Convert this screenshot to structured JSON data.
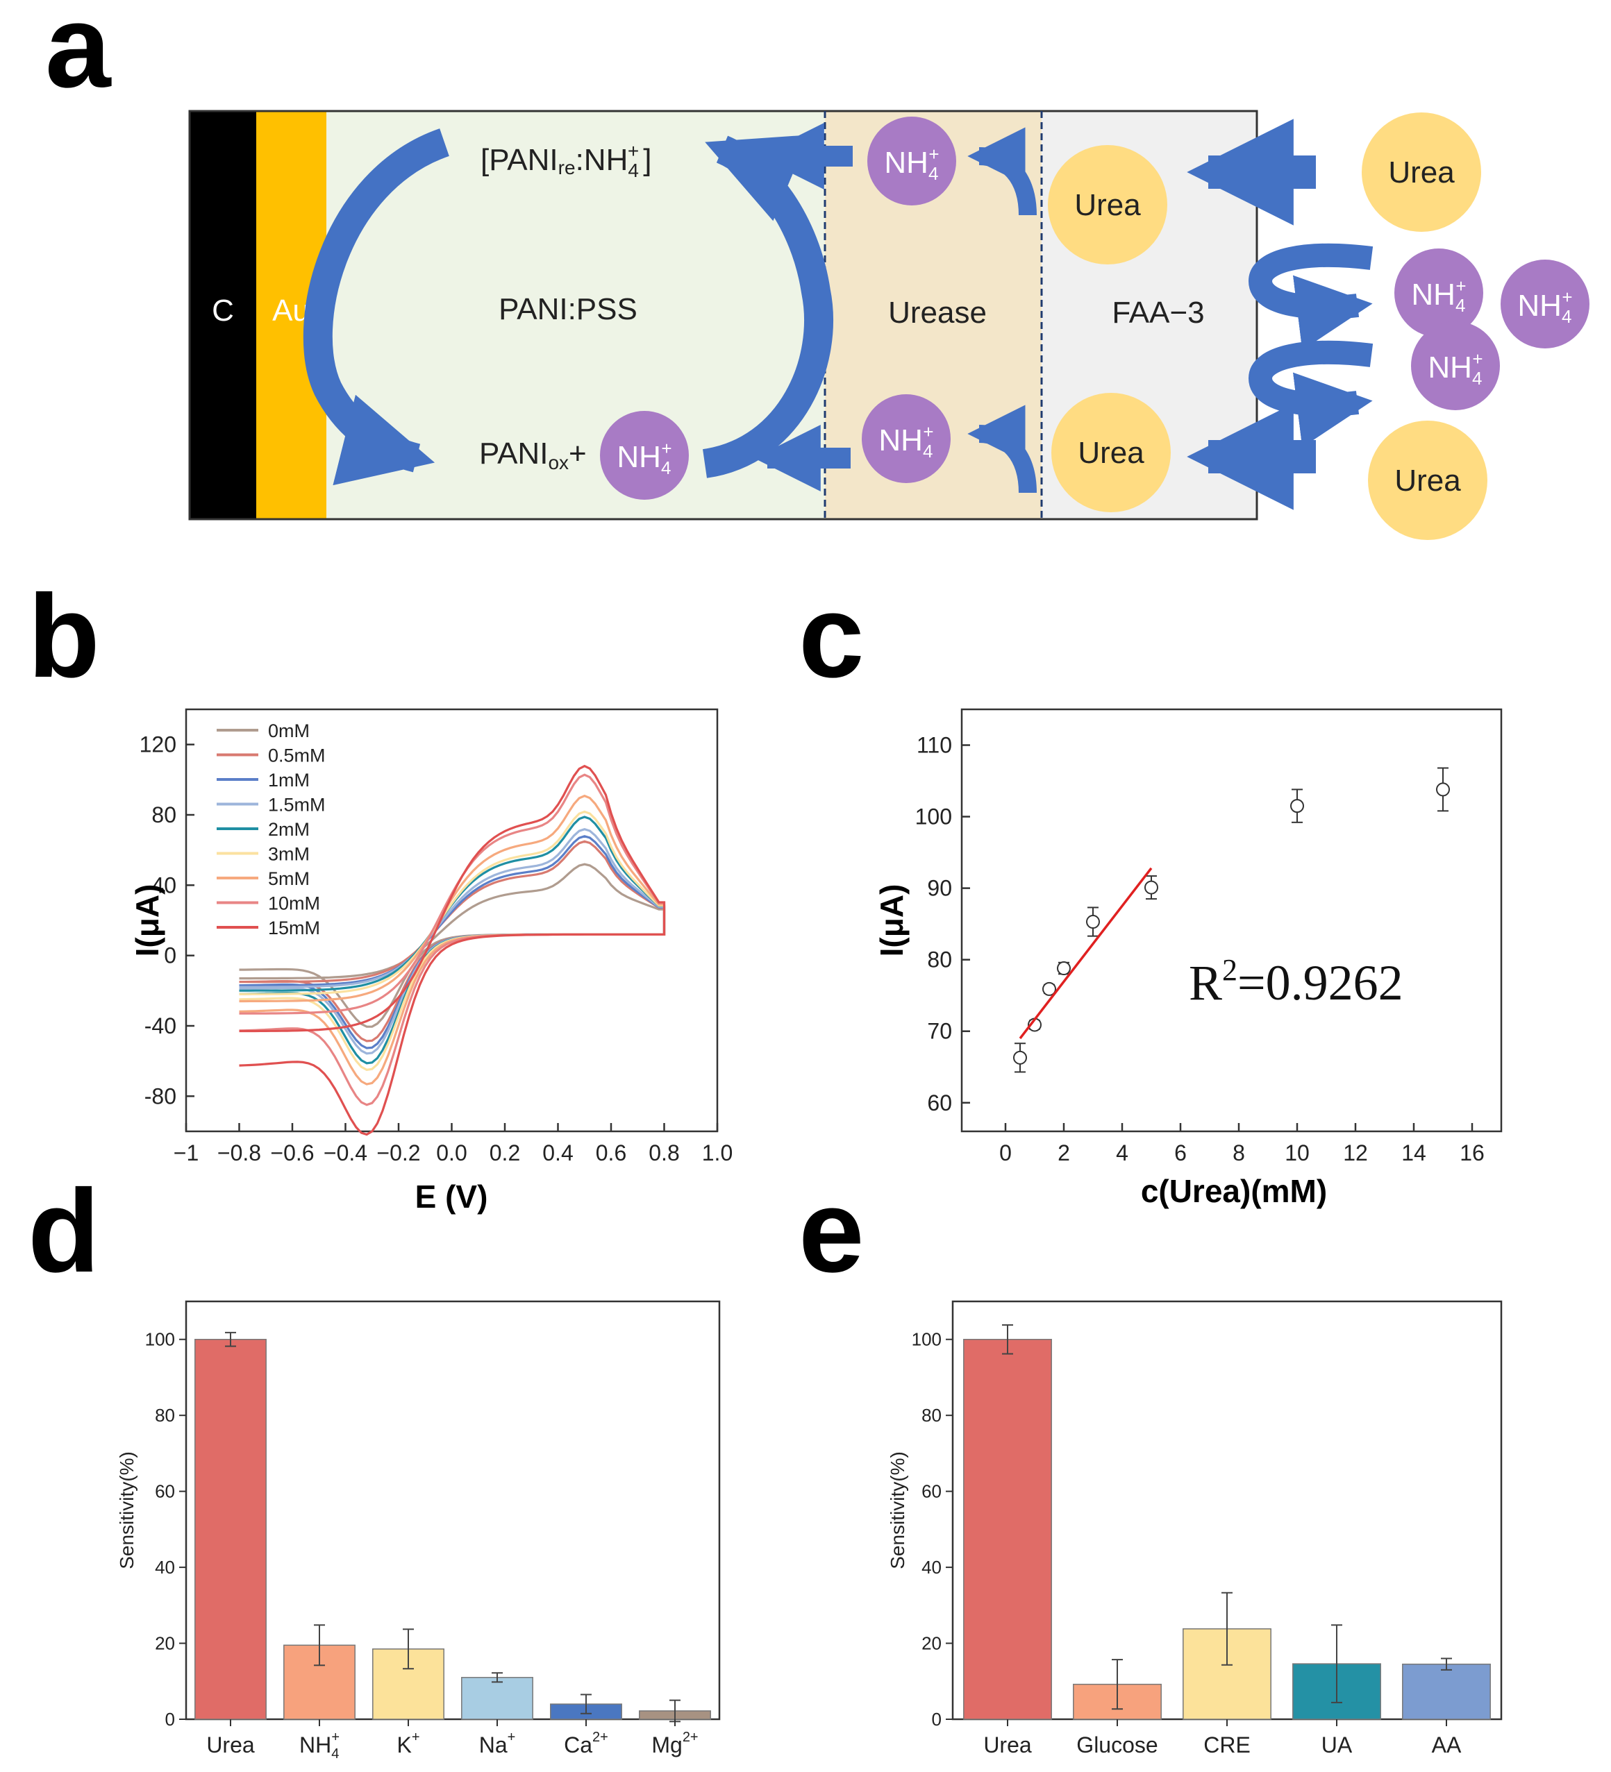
{
  "panel_labels": [
    "a",
    "b",
    "c",
    "d",
    "e"
  ],
  "schematic": {
    "layer_c": "C",
    "layer_au": "Au",
    "zone_pani": "PANI:PSS",
    "zone_urease": "Urease",
    "zone_faa": "FAA−3",
    "reduced_prefix": "[PANI",
    "reduced_sub": "re",
    "reduced_mid": ":NH",
    "reduced_suffix": "]",
    "oxidized_prefix": "PANI",
    "oxidized_sub": "ox",
    "oxidized_plus": "+",
    "nh4": "NH",
    "nh4_sub": "4",
    "nh4_sup": "+",
    "urea": "Urea",
    "colors": {
      "carbon": "#000000",
      "gold": "#FFC000",
      "pani_bg": "#EEF4E6",
      "urease_bg": "#F3E6C9",
      "faa_bg": "#F0F0F0",
      "arrow": "#4472C4",
      "ammonium": "#A87BC5",
      "urea": "#FFDC82"
    },
    "icons": [
      "curved-arrow",
      "straight-arrow"
    ]
  },
  "chart_data": [
    {
      "panel": "b",
      "type": "line",
      "xlabel": "E (V)",
      "ylabel": "I(μA)",
      "xlim": [
        -1.0,
        1.0
      ],
      "ylim": [
        -100,
        140
      ],
      "xticks": [
        -1.0,
        -0.8,
        -0.6,
        -0.4,
        -0.2,
        0.0,
        0.2,
        0.4,
        0.6,
        0.8,
        1.0
      ],
      "xtick_labels": [
        "−1",
        "−0.8",
        "−0.6",
        "−0.4",
        "−0.2",
        "0.0",
        "0.2",
        "0.4",
        "0.6",
        "0.8",
        "1.0"
      ],
      "yticks": [
        -80,
        -40,
        0,
        40,
        80,
        120
      ],
      "ytick_labels": [
        "-80",
        "-40",
        "0",
        "40",
        "80",
        "120"
      ],
      "legend_position": "top-left",
      "series": [
        {
          "name": "0mM",
          "color": "#B09C8F",
          "peak_anodic": 52,
          "peak_cathodic": -43,
          "start_low": -13,
          "start_high": -13
        },
        {
          "name": "0.5mM",
          "color": "#D87A70",
          "peak_anodic": 65,
          "peak_cathodic": -47,
          "start_low": -20,
          "start_high": -15
        },
        {
          "name": "1mM",
          "color": "#5B7FC8",
          "peak_anodic": 68,
          "peak_cathodic": -50,
          "start_low": -22,
          "start_high": -17
        },
        {
          "name": "1.5mM",
          "color": "#9DB5DB",
          "peak_anodic": 72,
          "peak_cathodic": -52,
          "start_low": -24,
          "start_high": -18
        },
        {
          "name": "2mM",
          "color": "#1F8FA3",
          "peak_anodic": 79,
          "peak_cathodic": -56,
          "start_low": -27,
          "start_high": -20
        },
        {
          "name": "3mM",
          "color": "#FBE1A0",
          "peak_anodic": 82,
          "peak_cathodic": -58,
          "start_low": -30,
          "start_high": -22
        },
        {
          "name": "5mM",
          "color": "#F6A97E",
          "peak_anodic": 91,
          "peak_cathodic": -62,
          "start_low": -37,
          "start_high": -26
        },
        {
          "name": "10mM",
          "color": "#E88585",
          "peak_anodic": 103,
          "peak_cathodic": -67,
          "start_low": -48,
          "start_high": -33
        },
        {
          "name": "15mM",
          "color": "#E05050",
          "peak_anodic": 108,
          "peak_cathodic": -71,
          "start_low": -68,
          "start_high": -43
        }
      ]
    },
    {
      "panel": "c",
      "type": "scatter",
      "xlabel": "c(Urea)(mM)",
      "ylabel": "I(μA)",
      "xlim": [
        -1.5,
        17
      ],
      "ylim": [
        56,
        115
      ],
      "xticks": [
        0,
        2,
        4,
        6,
        8,
        10,
        12,
        14,
        16
      ],
      "yticks": [
        60,
        70,
        80,
        90,
        100,
        110
      ],
      "annotation": "R²=0.9262",
      "annotation_base": "R",
      "annotation_sup": "2",
      "annotation_rest": "=0.9262",
      "points": [
        {
          "x": 0.5,
          "y": 66.3,
          "err": 2.0
        },
        {
          "x": 1.0,
          "y": 70.9,
          "err": 0.6
        },
        {
          "x": 1.5,
          "y": 75.9,
          "err": 0.6
        },
        {
          "x": 2.0,
          "y": 78.8,
          "err": 0.8
        },
        {
          "x": 3.0,
          "y": 85.3,
          "err": 2.0
        },
        {
          "x": 5.0,
          "y": 90.1,
          "err": 1.6
        },
        {
          "x": 10.0,
          "y": 101.5,
          "err": 2.3
        },
        {
          "x": 15.0,
          "y": 103.8,
          "err": 3.0
        }
      ],
      "fit_line": {
        "x": [
          0.5,
          5.0
        ],
        "y": [
          69.0,
          92.8
        ],
        "color": "#E02020"
      }
    },
    {
      "panel": "d",
      "type": "bar",
      "ylabel": "Sensitivity(%)",
      "ylim": [
        0,
        110
      ],
      "yticks": [
        0,
        20,
        40,
        60,
        80,
        100
      ],
      "categories": [
        {
          "base": "Urea",
          "sub": "",
          "sup": ""
        },
        {
          "base": "NH",
          "sub": "4",
          "sup": "+"
        },
        {
          "base": "K",
          "sub": "",
          "sup": "+"
        },
        {
          "base": "Na",
          "sub": "",
          "sup": "+"
        },
        {
          "base": "Ca",
          "sub": "",
          "sup": "2+"
        },
        {
          "base": "Mg",
          "sub": "",
          "sup": "2+"
        }
      ],
      "values": [
        100,
        19.5,
        18.5,
        11,
        4,
        2.2
      ],
      "errors": [
        1.8,
        5.3,
        5.2,
        1.2,
        2.5,
        2.8
      ],
      "colors": [
        "#E06C67",
        "#F7A27D",
        "#FCE29A",
        "#A8CDE3",
        "#4A77C1",
        "#A79282"
      ]
    },
    {
      "panel": "e",
      "type": "bar",
      "ylabel": "Sensitivity(%)",
      "ylim": [
        0,
        110
      ],
      "yticks": [
        0,
        20,
        40,
        60,
        80,
        100
      ],
      "categories": [
        {
          "base": "Urea",
          "sub": "",
          "sup": ""
        },
        {
          "base": "Glucose",
          "sub": "",
          "sup": ""
        },
        {
          "base": "CRE",
          "sub": "",
          "sup": ""
        },
        {
          "base": "UA",
          "sub": "",
          "sup": ""
        },
        {
          "base": "AA",
          "sub": "",
          "sup": ""
        }
      ],
      "values": [
        100,
        9.2,
        23.8,
        14.6,
        14.5
      ],
      "errors": [
        3.8,
        6.5,
        9.5,
        10.2,
        1.5
      ],
      "colors": [
        "#E06C67",
        "#F7A27D",
        "#FCE29A",
        "#2491A5",
        "#7C9CD0"
      ]
    }
  ]
}
